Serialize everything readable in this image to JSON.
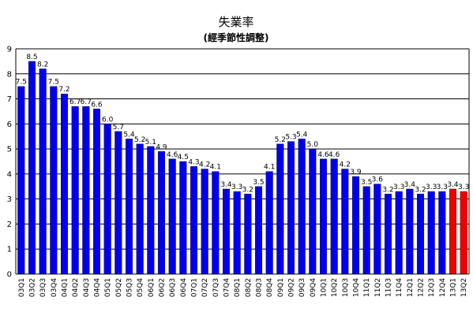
{
  "chart_data": {
    "type": "bar",
    "title": "失業率",
    "subtitle": "(經季節性調整)",
    "xlabel": "",
    "ylabel": "",
    "ylim": [
      0,
      9
    ],
    "yticks": [
      "0",
      "1",
      "2",
      "3",
      "4",
      "5",
      "6",
      "7",
      "8",
      "9"
    ],
    "grid": true,
    "legend": "none",
    "colors": {
      "actual": "#0000ee",
      "forecast": "#ee0000",
      "grid": "#000000"
    },
    "categories": [
      "03Q1",
      "03Q2",
      "03Q3",
      "03Q4",
      "04Q1",
      "04Q2",
      "04Q3",
      "04Q4",
      "05Q1",
      "05Q2",
      "05Q3",
      "05Q4",
      "06Q1",
      "06Q2",
      "06Q3",
      "06Q4",
      "07Q1",
      "07Q2",
      "07Q3",
      "07Q4",
      "08Q1",
      "08Q2",
      "08Q3",
      "08Q4",
      "09Q1",
      "09Q2",
      "09Q3",
      "09Q4",
      "10Q1",
      "10Q2",
      "10Q3",
      "10Q4",
      "11Q1",
      "11Q2",
      "11Q3",
      "11Q4",
      "12Q1",
      "12Q2",
      "12Q3",
      "12Q4",
      "13Q1",
      "13Q2"
    ],
    "values": [
      7.5,
      8.5,
      8.2,
      7.5,
      7.2,
      6.7,
      6.7,
      6.6,
      6.0,
      5.7,
      5.4,
      5.2,
      5.1,
      4.9,
      4.6,
      4.5,
      4.3,
      4.2,
      4.1,
      3.4,
      3.3,
      3.2,
      3.5,
      4.1,
      5.2,
      5.3,
      5.4,
      5.0,
      4.6,
      4.6,
      4.2,
      3.9,
      3.5,
      3.6,
      3.2,
      3.3,
      3.4,
      3.2,
      3.3,
      3.3,
      3.4,
      3.3
    ],
    "labels": [
      "7.5",
      "8.5",
      "8.2",
      "7.5",
      "7.2",
      "6.7",
      "6.7",
      "6.6",
      "6.0",
      "5.7",
      "5.4",
      "5.2",
      "5.1",
      "4.9",
      "4.6",
      "4.5",
      "4.3",
      "4.2",
      "4.1",
      "3.4",
      "3.3",
      "3.2",
      "3.5",
      "4.1",
      "5.2",
      "5.3",
      "5.4",
      "5.0",
      "4.6",
      "4.6",
      "4.2",
      "3.9",
      "3.5",
      "3.6",
      "3.2",
      "3.3",
      "3.4",
      "3.2",
      "3.3",
      "3.3",
      "3.4",
      "3.3"
    ],
    "highlighted_categories": [
      "13Q1",
      "13Q2"
    ]
  }
}
